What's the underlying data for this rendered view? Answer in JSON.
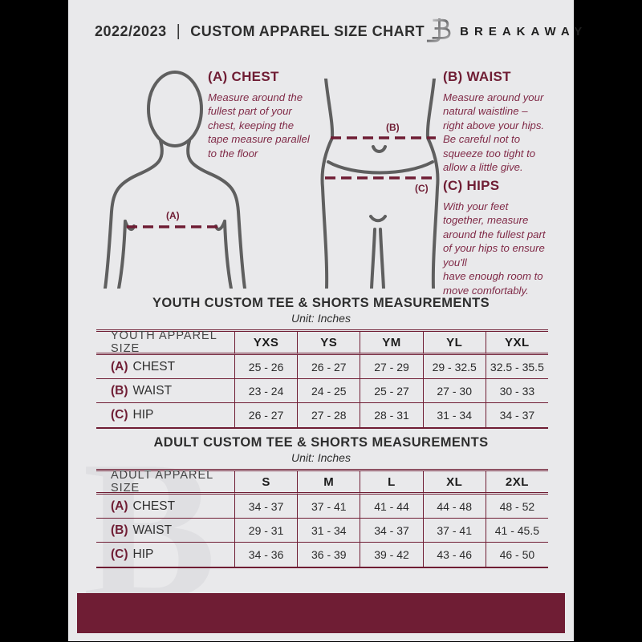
{
  "header": {
    "season": "2022/2023",
    "separator": "|",
    "title": "CUSTOM APPAREL SIZE CHART",
    "brand": "BREAKAWAY",
    "logo_icon": "breakaway-b-logo"
  },
  "colors": {
    "maroon": "#6f1d34",
    "page_background": "#e9e9eb",
    "heading_text": "#2e2e2e",
    "diagram_stroke": "#5f5f5f"
  },
  "guide": {
    "labels": {
      "chest": "(A)",
      "waist": "(B)",
      "hips": "(C)"
    },
    "sections": [
      {
        "heading": "(A) CHEST",
        "body": "Measure around the\nfullest part of your\nchest, keeping the\ntape measure parallel\nto the floor"
      },
      {
        "heading": "(B) WAIST",
        "body": "Measure around your\nnatural waistline –\nright above your hips.\nBe careful not to\nsqueeze too tight to\nallow a little give."
      },
      {
        "heading": "(C) HIPS",
        "body": "With your feet\ntogether, measure\naround the fullest part\nof your hips to ensure\nyou'll\nhave enough room to\nmove comfortably."
      }
    ]
  },
  "tables": [
    {
      "title": "YOUTH CUSTOM TEE & SHORTS MEASUREMENTS",
      "unit": "Unit: Inches",
      "size_header": "YOUTH APPAREL SIZE",
      "sizes": [
        "YXS",
        "YS",
        "YM",
        "YL",
        "YXL"
      ],
      "rows": [
        {
          "tag": "(A)",
          "label": "CHEST",
          "values": [
            "25 - 26",
            "26 - 27",
            "27 - 29",
            "29 - 32.5",
            "32.5 - 35.5"
          ]
        },
        {
          "tag": "(B)",
          "label": "WAIST",
          "values": [
            "23 - 24",
            "24 - 25",
            "25 - 27",
            "27 - 30",
            "30 - 33"
          ]
        },
        {
          "tag": "(C)",
          "label": "HIP",
          "values": [
            "26 - 27",
            "27 - 28",
            "28 - 31",
            "31 - 34",
            "34 - 37"
          ]
        }
      ]
    },
    {
      "title": "ADULT CUSTOM TEE & SHORTS MEASUREMENTS",
      "unit": "Unit: Inches",
      "size_header": "ADULT APPAREL SIZE",
      "sizes": [
        "S",
        "M",
        "L",
        "XL",
        "2XL"
      ],
      "rows": [
        {
          "tag": "(A)",
          "label": "CHEST",
          "values": [
            "34 - 37",
            "37 - 41",
            "41 - 44",
            "44 - 48",
            "48 - 52"
          ]
        },
        {
          "tag": "(B)",
          "label": "WAIST",
          "values": [
            "29 - 31",
            "31 - 34",
            "34 - 37",
            "37 - 41",
            "41 - 45.5"
          ]
        },
        {
          "tag": "(C)",
          "label": "HIP",
          "values": [
            "34 - 36",
            "36 - 39",
            "39 - 42",
            "43 - 46",
            "46 - 50"
          ]
        }
      ]
    }
  ],
  "watermark": "B"
}
